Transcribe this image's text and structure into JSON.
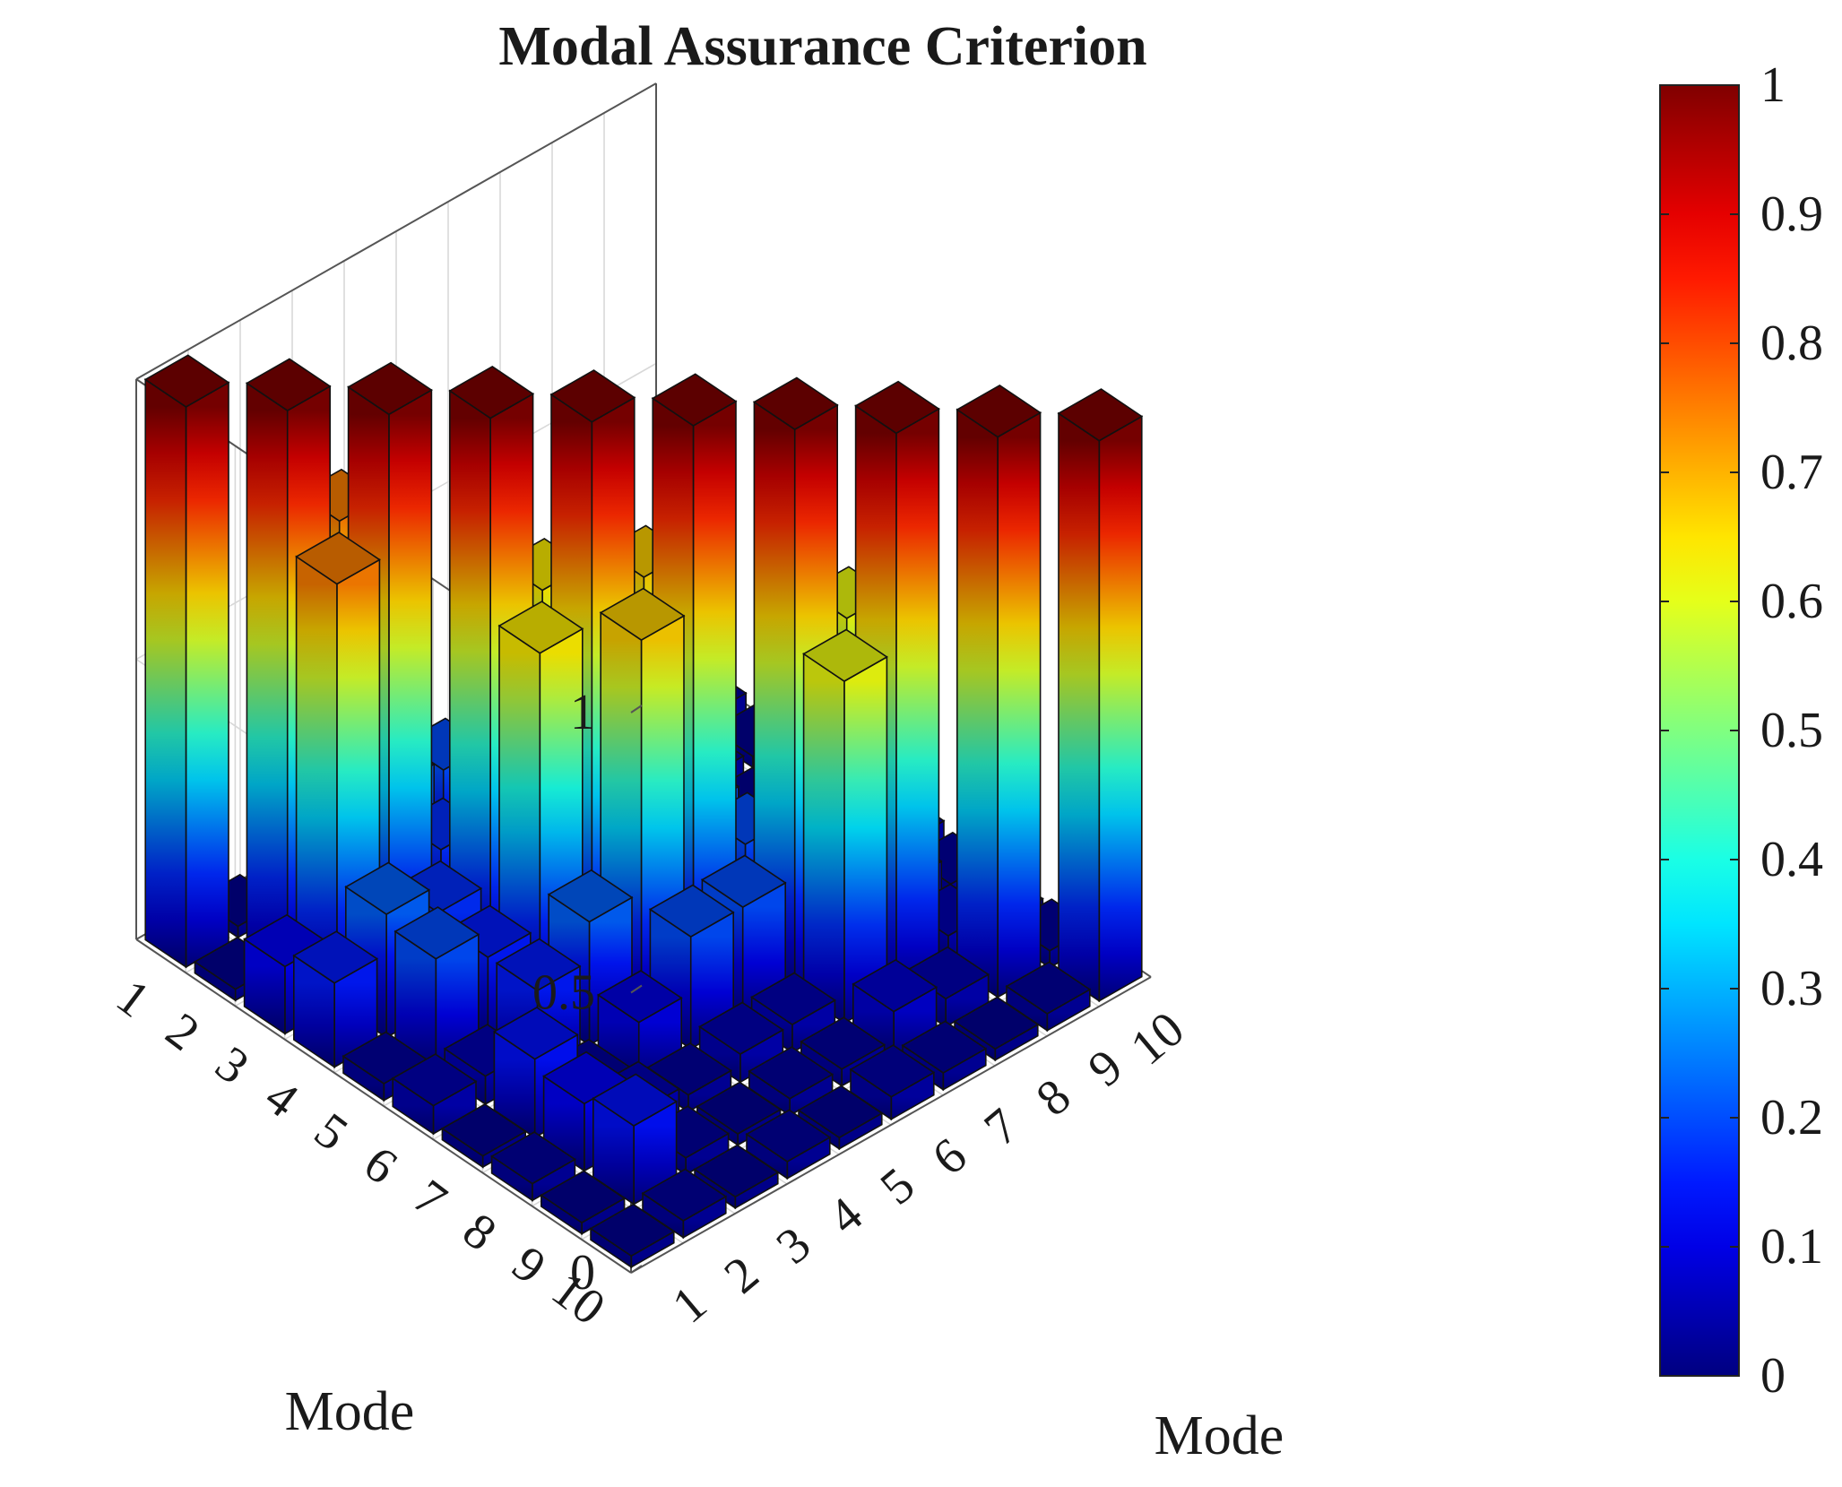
{
  "chart_data": {
    "type": "bar3d",
    "title": "Modal Assurance Criterion",
    "xlabel": "Mode",
    "ylabel": "Mode",
    "zlabel": "",
    "x_ticks": [
      "1",
      "2",
      "3",
      "4",
      "5",
      "6",
      "7",
      "8",
      "9",
      "10"
    ],
    "y_ticks": [
      "1",
      "2",
      "3",
      "4",
      "5",
      "6",
      "7",
      "8",
      "9",
      "10"
    ],
    "z_ticks": [
      "0",
      "0.5",
      "1"
    ],
    "zlim": [
      0,
      1
    ],
    "colorbar": {
      "colormap": "jet",
      "range": [
        0,
        1
      ],
      "ticks": [
        "0",
        "0.1",
        "0.2",
        "0.3",
        "0.4",
        "0.5",
        "0.6",
        "0.7",
        "0.8",
        "0.9",
        "1"
      ]
    },
    "matrix_rows_are_left_axis_mode": true,
    "values": [
      [
        1.0,
        0.02,
        0.12,
        0.15,
        0.03,
        0.05,
        0.02,
        0.03,
        0.02,
        0.02
      ],
      [
        0.02,
        1.0,
        0.75,
        0.22,
        0.2,
        0.05,
        0.14,
        0.12,
        0.14,
        0.03
      ],
      [
        0.12,
        0.75,
        1.0,
        0.17,
        0.15,
        0.15,
        0.03,
        0.05,
        0.03,
        0.02
      ],
      [
        0.15,
        0.22,
        0.17,
        1.0,
        0.64,
        0.22,
        0.1,
        0.03,
        0.02,
        0.03
      ],
      [
        0.03,
        0.2,
        0.15,
        0.64,
        1.0,
        0.67,
        0.2,
        0.05,
        0.03,
        0.02
      ],
      [
        0.05,
        0.05,
        0.15,
        0.22,
        0.67,
        1.0,
        0.2,
        0.05,
        0.03,
        0.04
      ],
      [
        0.02,
        0.14,
        0.03,
        0.1,
        0.2,
        0.2,
        1.0,
        0.61,
        0.08,
        0.03
      ],
      [
        0.03,
        0.12,
        0.05,
        0.03,
        0.05,
        0.05,
        0.61,
        1.0,
        0.05,
        0.02
      ],
      [
        0.02,
        0.14,
        0.03,
        0.02,
        0.03,
        0.03,
        0.08,
        0.05,
        1.0,
        0.03
      ],
      [
        0.02,
        0.03,
        0.02,
        0.03,
        0.02,
        0.04,
        0.03,
        0.02,
        0.03,
        1.0
      ]
    ]
  }
}
